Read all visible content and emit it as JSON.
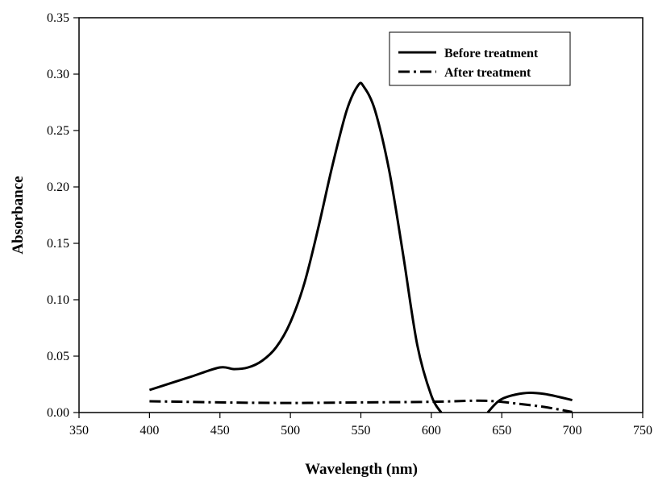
{
  "chart_data": {
    "type": "line",
    "title": "",
    "xlabel": "Wavelength (nm)",
    "ylabel": "Absorbance",
    "xlim": [
      350,
      750
    ],
    "ylim": [
      0,
      0.35
    ],
    "x_ticks": [
      "350",
      "400",
      "450",
      "500",
      "550",
      "600",
      "650",
      "700",
      "750"
    ],
    "y_ticks": [
      "0.00",
      "0.05",
      "0.10",
      "0.15",
      "0.20",
      "0.25",
      "0.30",
      "0.35"
    ],
    "grid": false,
    "legend_position": "top-right",
    "series": [
      {
        "name": "Before treatment",
        "style": "solid",
        "color": "#000000",
        "segments": [
          [
            [
              400,
              0.02
            ],
            [
              415,
              0.026
            ],
            [
              430,
              0.032
            ],
            [
              450,
              0.04
            ],
            [
              460,
              0.0385
            ],
            [
              470,
              0.04
            ],
            [
              480,
              0.046
            ],
            [
              490,
              0.058
            ],
            [
              500,
              0.08
            ],
            [
              510,
              0.115
            ],
            [
              520,
              0.165
            ],
            [
              530,
              0.22
            ],
            [
              540,
              0.268
            ],
            [
              548,
              0.29
            ],
            [
              552,
              0.289
            ],
            [
              560,
              0.268
            ],
            [
              570,
              0.215
            ],
            [
              580,
              0.14
            ],
            [
              590,
              0.06
            ],
            [
              600,
              0.015
            ],
            [
              607,
              0.0
            ]
          ],
          [
            [
              640,
              0.0
            ],
            [
              645,
              0.007
            ],
            [
              650,
              0.012
            ],
            [
              660,
              0.016
            ],
            [
              670,
              0.0175
            ],
            [
              680,
              0.0165
            ],
            [
              690,
              0.014
            ],
            [
              700,
              0.011
            ]
          ]
        ]
      },
      {
        "name": "After treatment",
        "style": "dash-dot",
        "color": "#000000",
        "segments": [
          [
            [
              400,
              0.01
            ],
            [
              450,
              0.009
            ],
            [
              500,
              0.0085
            ],
            [
              550,
              0.009
            ],
            [
              600,
              0.0095
            ],
            [
              630,
              0.0105
            ],
            [
              645,
              0.01
            ],
            [
              660,
              0.008
            ],
            [
              680,
              0.005
            ],
            [
              700,
              0.0005
            ]
          ]
        ]
      }
    ]
  }
}
